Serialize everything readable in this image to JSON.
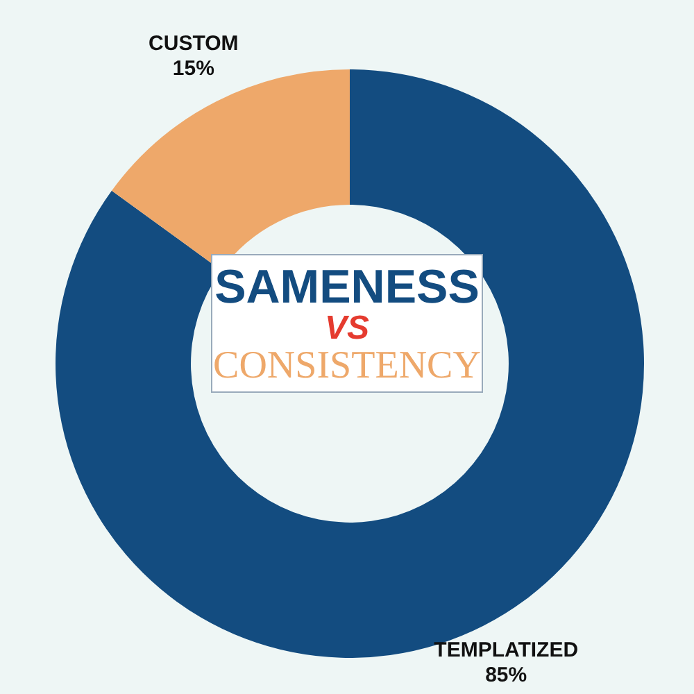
{
  "chart_data": {
    "type": "donut",
    "title": "SAMENESS VS CONSISTENCY",
    "categories": [
      "TEMPLATIZED",
      "CUSTOM"
    ],
    "values": [
      85,
      15
    ],
    "colors": [
      "#134c80",
      "#eea86a"
    ],
    "value_labels": [
      "85%",
      "15%"
    ],
    "legend": false
  }
}
